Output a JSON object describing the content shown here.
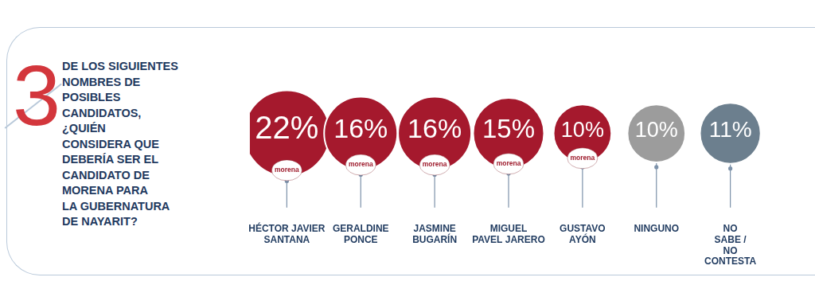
{
  "chart_data": {
    "type": "bubble",
    "title": "DE LOS SIGUIENTES\nNOMBRES DE\nPOSIBLES\nCANDIDATOS,\n¿QUIÉN\nCONSIDERA QUE\nDEBERÍA SER EL\nCANDIDATO DE\nMORENA PARA\nLA GUBERNATURA\nDE NAYARIT?",
    "annotations": [
      "3"
    ],
    "categories": [
      "HÉCTOR JAVIER\nSANTANA",
      "GERALDINE\nPONCE",
      "JASMINE\nBUGARÍN",
      "MIGUEL\nPAVEL JARERO",
      "GUSTAVO\nAYÓN",
      "NINGUNO",
      "NO\nSABE /\nNO\nCONTESTA"
    ],
    "values": [
      22,
      16,
      16,
      15,
      10,
      10,
      11
    ],
    "value_labels": [
      "22%",
      "16%",
      "16%",
      "15%",
      "10%",
      "10%",
      "11%"
    ],
    "colors": [
      "#a5192d",
      "#a5192d",
      "#a5192d",
      "#a5192d",
      "#a5192d",
      "#9c9c9c",
      "#6c7f8e"
    ],
    "mark_labels": [
      "morena",
      "morena",
      "morena",
      "morena",
      "morena",
      null,
      null
    ],
    "data_labels": true,
    "tick_labels": "x"
  }
}
